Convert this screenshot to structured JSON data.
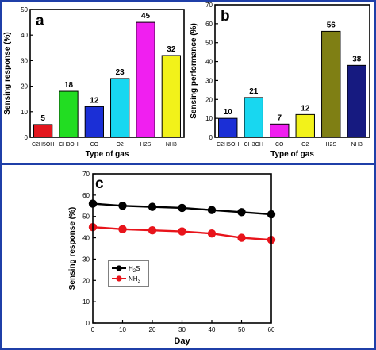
{
  "colors": {
    "frame": "#1f3fa8",
    "black": "#000000",
    "h2s_series": "#000000",
    "nh3_series": "#e8141b"
  },
  "chart_data": [
    {
      "type": "bar",
      "panel_label": "a",
      "categories": [
        "C2H5OH",
        "CH3OH",
        "CO",
        "O2",
        "H2S",
        "NH3"
      ],
      "values": [
        5,
        18,
        12,
        23,
        45,
        32
      ],
      "data_labels": [
        "5",
        "18",
        "12",
        "23",
        "45",
        "32"
      ],
      "bar_colors": [
        "#e3171e",
        "#22dd22",
        "#1b2fd6",
        "#18d7f0",
        "#f01ff0",
        "#f2f21a"
      ],
      "xlabel": "Type of gas",
      "ylabel": "Sensing response (%)",
      "ylim": [
        0,
        50
      ],
      "yticks": [
        "0",
        "10",
        "20",
        "30",
        "40",
        "50"
      ],
      "grid": false
    },
    {
      "type": "bar",
      "panel_label": "b",
      "categories": [
        "C2H5OH",
        "CH3OH",
        "CO",
        "O2",
        "H2S",
        "NH3"
      ],
      "values": [
        10,
        21,
        7,
        12,
        56,
        38
      ],
      "data_labels": [
        "10",
        "21",
        "7",
        "12",
        "56",
        "38"
      ],
      "bar_colors": [
        "#1b2fd6",
        "#18d7f0",
        "#f01ff0",
        "#f2f21a",
        "#7f7f14",
        "#161a80"
      ],
      "xlabel": "Type of gas",
      "ylabel": "Sensing performance (%)",
      "ylim": [
        0,
        70
      ],
      "yticks": [
        "0",
        "10",
        "20",
        "30",
        "40",
        "50",
        "60",
        "70"
      ],
      "grid": false
    },
    {
      "type": "line",
      "panel_label": "c",
      "x": [
        0,
        10,
        20,
        30,
        40,
        50,
        60
      ],
      "xticks": [
        "0",
        "10",
        "20",
        "30",
        "40",
        "50",
        "60"
      ],
      "series": [
        {
          "name": "H2S",
          "name_main": "H",
          "name_sub": "2",
          "name_tail": "S",
          "color": "#000000",
          "values": [
            56,
            55,
            54.5,
            54,
            53,
            52,
            51
          ]
        },
        {
          "name": "NH3",
          "name_main": "NH",
          "name_sub": "3",
          "name_tail": "",
          "color": "#e8141b",
          "values": [
            45,
            44,
            43.5,
            43,
            42,
            40,
            39
          ]
        }
      ],
      "xlabel": "Day",
      "ylabel": "Sensing response (%)",
      "xlim": [
        0,
        60
      ],
      "ylim": [
        0,
        70
      ],
      "yticks": [
        "0",
        "10",
        "20",
        "30",
        "40",
        "50",
        "60",
        "70"
      ],
      "legend": "middle-left",
      "grid": false
    }
  ]
}
